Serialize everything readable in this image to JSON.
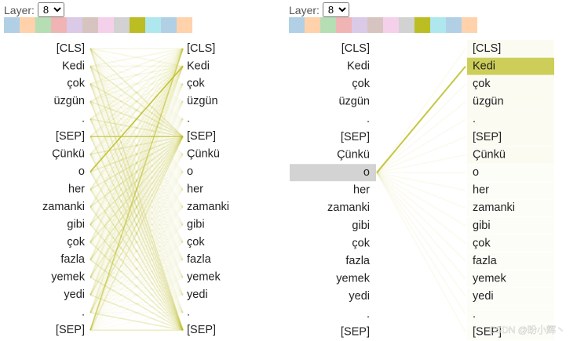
{
  "panels": [
    {
      "layer_label": "Layer:",
      "layer_value": "8"
    },
    {
      "layer_label": "Layer:",
      "layer_value": "8"
    }
  ],
  "head_colors": [
    "#1f77b4",
    "#ff7f0e",
    "#2ca02c",
    "#d62728",
    "#9467bd",
    "#8c564b",
    "#e377c2",
    "#7f7f7f",
    "#bcbd22",
    "#17becf",
    "#1f77b4",
    "#ff7f0e"
  ],
  "tokens": [
    "[CLS]",
    "Kedi",
    "çok",
    "üzgün",
    ".",
    "[SEP]",
    "Çünkü",
    "o",
    "her",
    "zamanki",
    "gibi",
    "çok",
    "fazla",
    "yemek",
    "yedi",
    ".",
    "[SEP]"
  ],
  "watermark": "CSDN @盼小辉丶"
}
